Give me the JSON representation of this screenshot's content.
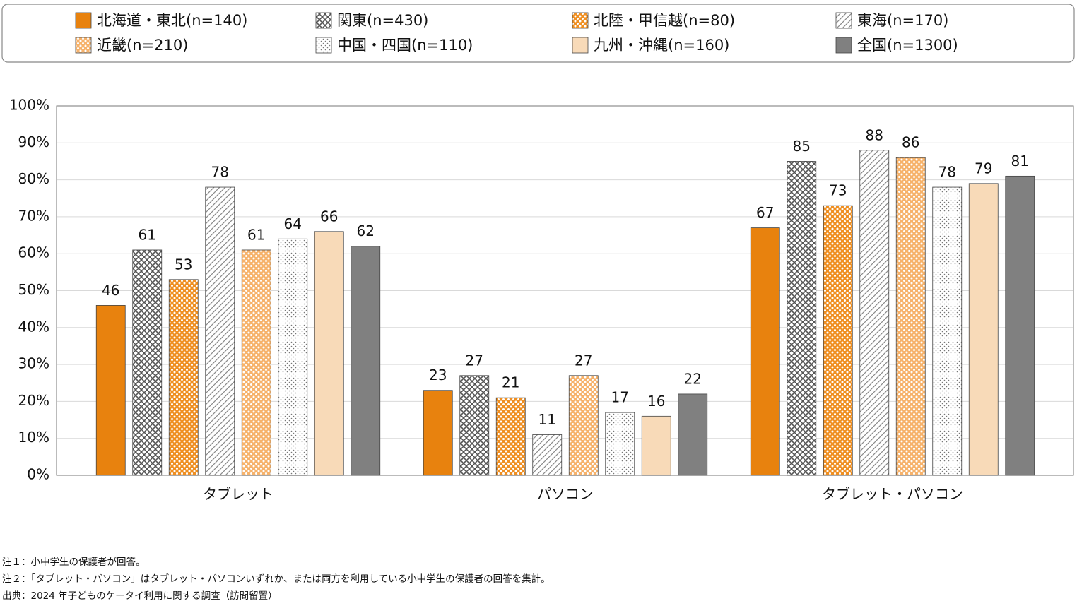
{
  "chart_data": {
    "type": "bar",
    "categories": [
      "タブレット",
      "パソコン",
      "タブレット・パソコン"
    ],
    "series": [
      {
        "name": "北海道・東北(n=140)",
        "color": "#e8820e",
        "pattern": "solid",
        "values": [
          46,
          23,
          67
        ]
      },
      {
        "name": "関東(n=430)",
        "color": "#555555",
        "pattern": "crosshatch",
        "values": [
          61,
          27,
          85
        ]
      },
      {
        "name": "北陸・甲信越(n=80)",
        "color": "#ef8f22",
        "pattern": "white-dots",
        "values": [
          53,
          21,
          73
        ]
      },
      {
        "name": "東海(n=170)",
        "color": "#8a8a8a",
        "pattern": "diagonal",
        "values": [
          78,
          11,
          88
        ]
      },
      {
        "name": "近畿(n=210)",
        "color": "#f6b26b",
        "pattern": "white-dots",
        "values": [
          61,
          27,
          86
        ]
      },
      {
        "name": "中国・四国(n=110)",
        "color": "#777777",
        "pattern": "dots",
        "values": [
          64,
          17,
          78
        ]
      },
      {
        "name": "九州・沖縄(n=160)",
        "color": "#f8dab8",
        "pattern": "solid",
        "values": [
          66,
          16,
          79
        ]
      },
      {
        "name": "全国(n=1300)",
        "color": "#808080",
        "pattern": "solid",
        "values": [
          62,
          22,
          81
        ]
      }
    ],
    "ylim": [
      0,
      100
    ],
    "yticks": [
      {
        "value": 0,
        "label": "0%"
      },
      {
        "value": 10,
        "label": "10%"
      },
      {
        "value": 20,
        "label": "20%"
      },
      {
        "value": 30,
        "label": "30%"
      },
      {
        "value": 40,
        "label": "40%"
      },
      {
        "value": 50,
        "label": "50%"
      },
      {
        "value": 60,
        "label": "60%"
      },
      {
        "value": 70,
        "label": "70%"
      },
      {
        "value": 80,
        "label": "80%"
      },
      {
        "value": 90,
        "label": "90%"
      },
      {
        "value": 100,
        "label": "100%"
      }
    ],
    "grid": true,
    "notes": [
      "注１：小中学生の保護者が回答。",
      "注２：「タブレット・パソコン」はタブレット・パソコンいずれか、または両方を利用している小中学生の保護者の回答を集計。",
      "出典：2024 年子どものケータイ利用に関する調査（訪問留置）"
    ]
  }
}
